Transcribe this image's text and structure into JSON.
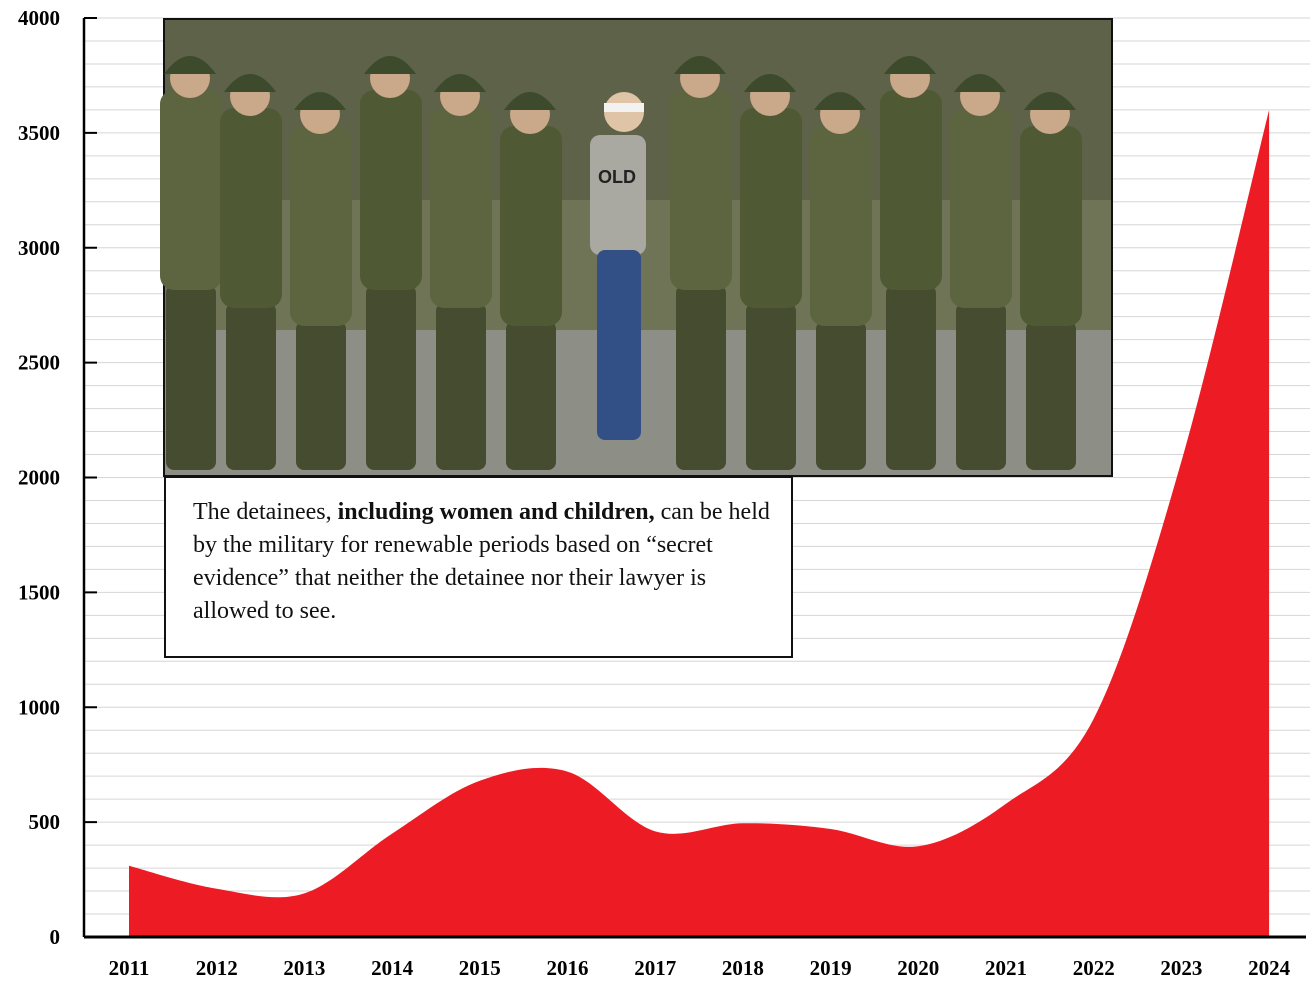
{
  "chart_data": {
    "type": "area",
    "x": [
      "2011",
      "2012",
      "2013",
      "2014",
      "2015",
      "2016",
      "2017",
      "2018",
      "2019",
      "2020",
      "2021",
      "2022",
      "2023",
      "2024"
    ],
    "series": [
      {
        "values": [
          310,
          210,
          190,
          450,
          680,
          720,
          460,
          495,
          470,
          395,
          580,
          950,
          2070,
          3600
        ]
      }
    ],
    "ylim": [
      0,
      4000
    ],
    "yticks": [
      0,
      500,
      1000,
      1500,
      2000,
      2500,
      3000,
      3500,
      4000
    ],
    "grid": true,
    "color": "#ed1c24",
    "title": "",
    "xlabel": "",
    "ylabel": ""
  },
  "inset_photo": {
    "description_icon": "photo-soldiers-detaining-blindfolded-boy",
    "shirt_text": "OLD"
  },
  "caption": {
    "before": "The detainees, ",
    "bold": "including women and children,",
    "after": " can be held by the military for renewable periods based on “secret evidence” that neither the detainee nor their lawyer is allowed to see."
  }
}
